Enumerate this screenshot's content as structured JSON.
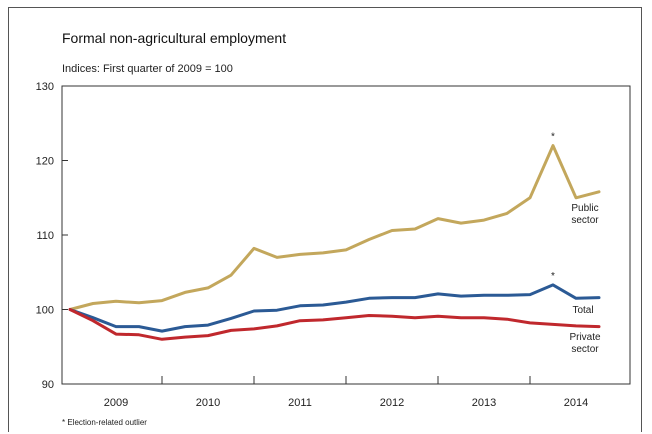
{
  "chart_data": {
    "type": "line",
    "title": "Formal non-agricultural employment",
    "subtitle": "Indices: First quarter of 2009 = 100",
    "footnote": "* Election-related outlier",
    "ylim": [
      90,
      130
    ],
    "y_ticks": [
      90,
      100,
      110,
      120,
      130
    ],
    "years": [
      "2009",
      "2010",
      "2011",
      "2012",
      "2013",
      "2014"
    ],
    "x": [
      "2009 Q1",
      "2009 Q2",
      "2009 Q3",
      "2009 Q4",
      "2010 Q1",
      "2010 Q2",
      "2010 Q3",
      "2010 Q4",
      "2011 Q1",
      "2011 Q2",
      "2011 Q3",
      "2011 Q4",
      "2012 Q1",
      "2012 Q2",
      "2012 Q3",
      "2012 Q4",
      "2013 Q1",
      "2013 Q2",
      "2013 Q3",
      "2013 Q4",
      "2014 Q1",
      "2014 Q2",
      "2014 Q3",
      "2014 Q4"
    ],
    "series": [
      {
        "name": "Public sector",
        "label_lines": [
          "Public",
          "sector"
        ],
        "color": "#c3a75c",
        "values": [
          100,
          100.8,
          101.1,
          100.9,
          101.2,
          102.3,
          102.9,
          104.6,
          108.2,
          107.0,
          107.4,
          107.6,
          108.0,
          109.4,
          110.6,
          110.8,
          112.2,
          111.6,
          112.0,
          112.9,
          115.0,
          122.0,
          115.0,
          115.8
        ],
        "outlier_index": 21
      },
      {
        "name": "Total",
        "label_lines": [
          "Total"
        ],
        "color": "#2b5a95",
        "values": [
          100,
          98.9,
          97.7,
          97.7,
          97.1,
          97.7,
          97.9,
          98.8,
          99.8,
          99.9,
          100.5,
          100.6,
          101.0,
          101.5,
          101.6,
          101.6,
          102.1,
          101.8,
          101.9,
          101.9,
          102.0,
          103.3,
          101.5,
          101.6
        ],
        "outlier_index": 21
      },
      {
        "name": "Private sector",
        "label_lines": [
          "Private",
          "sector"
        ],
        "color": "#c0282d",
        "values": [
          100,
          98.5,
          96.7,
          96.6,
          96.0,
          96.3,
          96.5,
          97.2,
          97.4,
          97.8,
          98.5,
          98.6,
          98.9,
          99.2,
          99.1,
          98.9,
          99.1,
          98.9,
          98.9,
          98.7,
          98.2,
          98.0,
          97.8,
          97.7
        ]
      }
    ]
  }
}
